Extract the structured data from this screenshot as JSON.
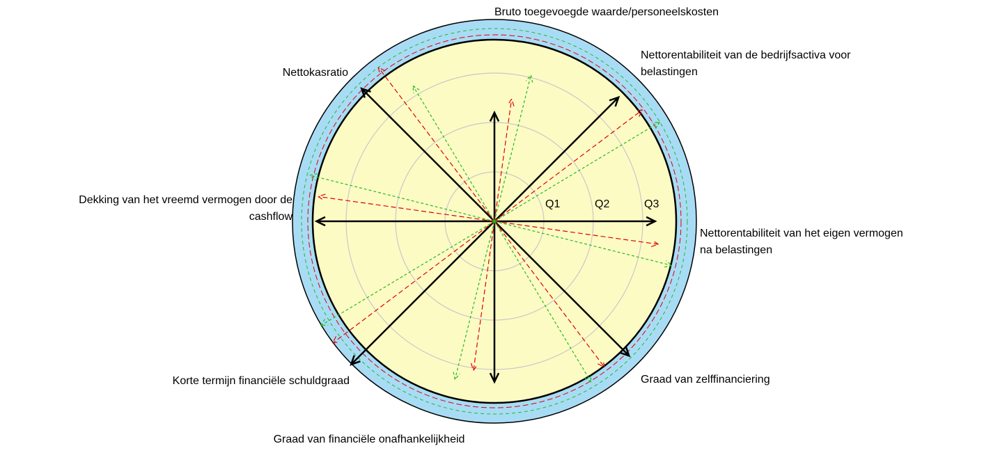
{
  "chart_data": {
    "type": "radial-arrows",
    "categories": [
      [
        "Bruto toegevoegde waarde/personeelskosten"
      ],
      [
        "Nettorentabiliteit van de bedrijfsactiva voor",
        "belastingen"
      ],
      [
        "Nettorentabiliteit van het eigen vermogen",
        "na belastingen"
      ],
      [
        "Graad van zelffinanciering"
      ],
      [
        "Graad van financiële onafhankelijkheid"
      ],
      [
        "Korte termijn financiële schuldgraad"
      ],
      [
        "Dekking van het vreemd vermogen door de",
        "cashflow"
      ],
      [
        "Nettokasratio"
      ]
    ],
    "rlim": [
      0,
      3
    ],
    "rticks": [
      {
        "value": 1,
        "label": "Q1"
      },
      {
        "value": 2,
        "label": "Q2"
      },
      {
        "value": 3,
        "label": "Q3"
      }
    ],
    "series": [
      {
        "color": "#000000",
        "dashed": false,
        "values": [
          2.2,
          3.55,
          3.25,
          3.85,
          3.25,
          4.1,
          3.6,
          3.8
        ]
      },
      {
        "color": "#e00000",
        "dashed": true,
        "values": [
          2.5,
          3.75,
          3.35,
          3.7,
          3.05,
          4.1,
          3.6,
          3.9
        ]
      },
      {
        "color": "#22bb22",
        "dashed": true,
        "values": [
          3.05,
          3.9,
          3.7,
          3.8,
          3.3,
          4.1,
          3.85,
          3.2
        ]
      }
    ]
  }
}
